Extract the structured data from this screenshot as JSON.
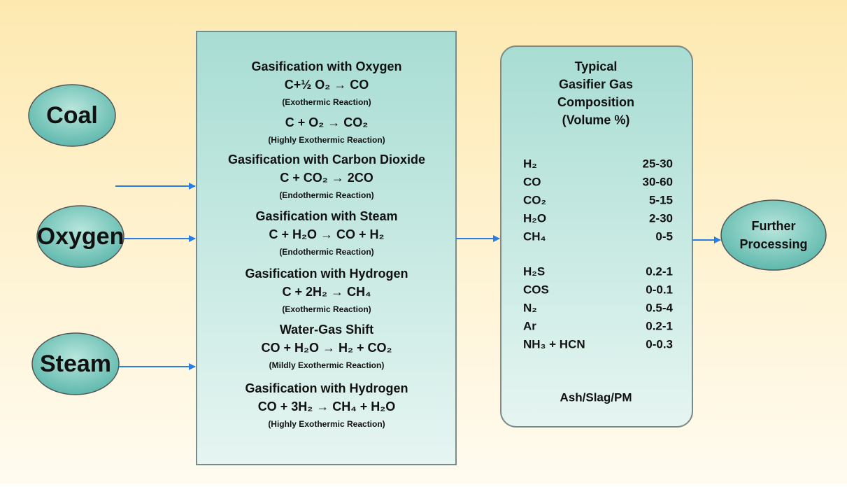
{
  "inputs": [
    "Coal",
    "Oxygen",
    "Steam"
  ],
  "reactions": [
    {
      "title": "Gasification with Oxygen",
      "steps": [
        {
          "equation": "C+½ O₂ → CO",
          "note": "(Exothermic Reaction)"
        },
        {
          "equation": "C + O₂ → CO₂",
          "note": "(Highly Exothermic Reaction)"
        }
      ]
    },
    {
      "title": "Gasification with Carbon Dioxide",
      "steps": [
        {
          "equation": "C + CO₂ → 2CO",
          "note": "(Endothermic Reaction)"
        }
      ]
    },
    {
      "title": "Gasification with Steam",
      "steps": [
        {
          "equation": "C + H₂O → CO + H₂",
          "note": "(Endothermic Reaction)"
        }
      ]
    },
    {
      "title": "Gasification with Hydrogen",
      "steps": [
        {
          "equation": "C + 2H₂ → CH₄",
          "note": "(Exothermic Reaction)"
        }
      ]
    },
    {
      "title": "Water-Gas Shift",
      "steps": [
        {
          "equation": "CO + H₂O → H₂ + CO₂",
          "note": "(Mildly Exothermic Reaction)"
        }
      ]
    },
    {
      "title": "Gasification with Hydrogen",
      "steps": [
        {
          "equation": "CO + 3H₂ → CH₄ + H₂O",
          "note": "(Highly Exothermic Reaction)"
        }
      ]
    }
  ],
  "composition": {
    "title": [
      "Typical",
      "Gasifier Gas",
      "Composition",
      "(Volume %)"
    ],
    "groups": [
      [
        {
          "name": "H₂",
          "range": "25-30"
        },
        {
          "name": "CO",
          "range": "30-60"
        },
        {
          "name": "CO₂",
          "range": "5-15"
        },
        {
          "name": "H₂O",
          "range": "2-30"
        },
        {
          "name": "CH₄",
          "range": "0-5"
        }
      ],
      [
        {
          "name": "H₂S",
          "range": "0.2-1"
        },
        {
          "name": "COS",
          "range": "0-0.1"
        },
        {
          "name": "N₂",
          "range": "0.5-4"
        },
        {
          "name": "Ar",
          "range": "0.2-1"
        },
        {
          "name": "NH₃ + HCN",
          "range": "0-0.3"
        }
      ]
    ],
    "footer": "Ash/Slag/PM"
  },
  "output": [
    "Further",
    "Processing"
  ]
}
